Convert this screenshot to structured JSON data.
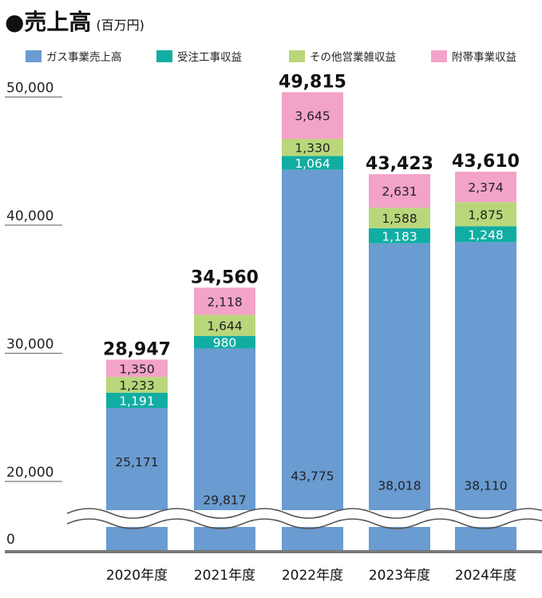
{
  "header": {
    "title": "●売上高",
    "unit": "(百万円)"
  },
  "colors": {
    "gas": "#6a9bd1",
    "contract": "#12ada2",
    "other": "#b9d77a",
    "ancillary": "#f3a3c7",
    "axis": "#7a7a7a",
    "break": "#555555"
  },
  "chart_data": {
    "type": "bar",
    "stacked": true,
    "title": "●売上高",
    "ylabel": "(百万円)",
    "categories": [
      "2020年度",
      "2021年度",
      "2022年度",
      "2023年度",
      "2024年度"
    ],
    "series": [
      {
        "name": "ガス事業売上高",
        "color_key": "gas",
        "values": [
          25171,
          29817,
          43775,
          38018,
          38110
        ],
        "labels": [
          "25,171",
          "29,817",
          "43,775",
          "38,018",
          "38,110"
        ]
      },
      {
        "name": "受注工事収益",
        "color_key": "contract",
        "values": [
          1191,
          980,
          1064,
          1183,
          1248
        ],
        "labels": [
          "1,191",
          "980",
          "1,064",
          "1,183",
          "1,248"
        ]
      },
      {
        "name": "その他営業雑収益",
        "color_key": "other",
        "values": [
          1233,
          1644,
          1330,
          1588,
          1875
        ],
        "labels": [
          "1,233",
          "1,644",
          "1,330",
          "1,588",
          "1,875"
        ]
      },
      {
        "name": "附帯事業収益",
        "color_key": "ancillary",
        "values": [
          1350,
          2118,
          3645,
          2631,
          2374
        ],
        "labels": [
          "1,350",
          "2,118",
          "3,645",
          "2,631",
          "2,374"
        ]
      }
    ],
    "totals": [
      28947,
      34560,
      49815,
      43423,
      43610
    ],
    "total_labels": [
      "28,947",
      "34,560",
      "49,815",
      "43,423",
      "43,610"
    ],
    "yticks": [
      0,
      20000,
      30000,
      40000,
      50000
    ],
    "ytick_labels": [
      "0",
      "20,000",
      "30,000",
      "40,000",
      "50,000"
    ],
    "ylim": [
      0,
      50000
    ],
    "axis_break": {
      "from": 0,
      "to": 20000
    },
    "legend_position": "top",
    "grid": false
  }
}
